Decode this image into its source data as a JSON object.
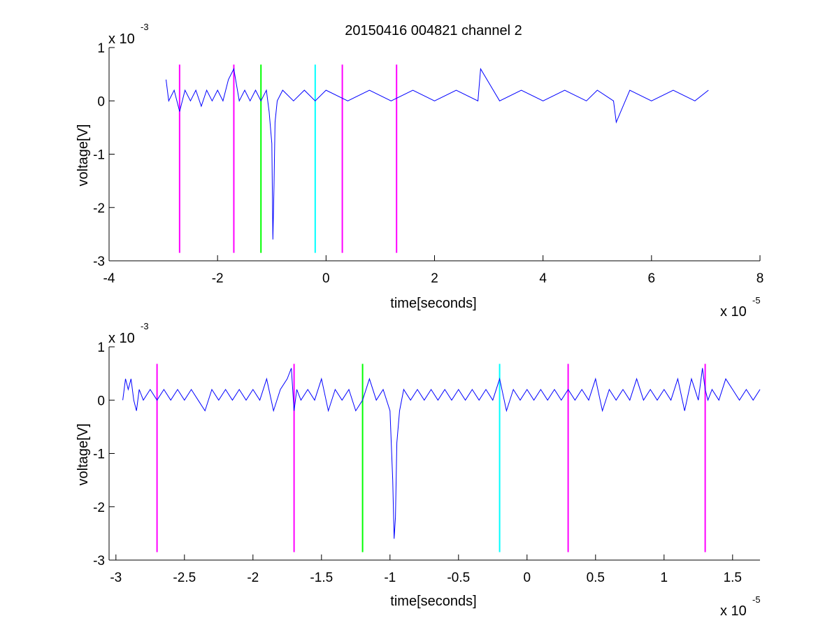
{
  "chart_data": [
    {
      "type": "line",
      "title": "20150416 004821 channel 2",
      "xlabel": "time[seconds]",
      "ylabel": "voltage[V]",
      "x_multiplier_base": "x 10",
      "x_multiplier_exp": "-5",
      "y_multiplier_base": "x 10",
      "y_multiplier_exp": "-3",
      "x_scale": 1e-05,
      "y_scale": 0.001,
      "xlim": [
        -4,
        8
      ],
      "ylim": [
        -3,
        1
      ],
      "x_ticks": [
        -4,
        -2,
        0,
        2,
        4,
        6,
        8
      ],
      "x_tick_labels": [
        "-4",
        "-2",
        "0",
        "2",
        "4",
        "6",
        "8"
      ],
      "y_ticks": [
        1,
        0,
        -1,
        -2,
        -3
      ],
      "y_tick_labels": [
        "1",
        "0",
        "-1",
        "-2",
        "-3"
      ],
      "grid": false,
      "colors": {
        "trace": "#0000ff",
        "trigger": "#ff00ff",
        "start": "#00ff00",
        "stop": "#00ffff"
      },
      "series": [
        {
          "color": "#0000ff",
          "x": [
            -2.95,
            -2.9,
            -2.8,
            -2.7,
            -2.6,
            -2.5,
            -2.4,
            -2.3,
            -2.2,
            -2.1,
            -2.0,
            -1.9,
            -1.8,
            -1.7,
            -1.6,
            -1.5,
            -1.4,
            -1.3,
            -1.2,
            -1.1,
            -1.05,
            -1.0,
            -0.98,
            -0.96,
            -0.94,
            -0.9,
            -0.8,
            -0.6,
            -0.4,
            -0.2,
            0,
            0.4,
            0.8,
            1.2,
            1.6,
            2.0,
            2.4,
            2.8,
            2.85,
            3.2,
            3.6,
            4.0,
            4.4,
            4.8,
            5.0,
            5.3,
            5.35,
            5.6,
            6.0,
            6.4,
            6.8,
            7.05
          ],
          "y": [
            0.4,
            0.0,
            0.2,
            -0.2,
            0.2,
            0.0,
            0.2,
            -0.1,
            0.2,
            0.0,
            0.2,
            0.0,
            0.4,
            0.6,
            0.0,
            0.2,
            0.0,
            0.2,
            0.0,
            0.2,
            -0.2,
            -0.8,
            -2.6,
            -1.6,
            -0.4,
            0.0,
            0.2,
            0.0,
            0.2,
            0.0,
            0.2,
            0.0,
            0.2,
            0.0,
            0.2,
            0.0,
            0.2,
            0.0,
            0.6,
            0.0,
            0.2,
            0.0,
            0.2,
            0.0,
            0.2,
            0.0,
            -0.4,
            0.2,
            0.0,
            0.2,
            0.0,
            0.2
          ]
        }
      ],
      "vlines": [
        {
          "x": -2.7,
          "color": "#ff00ff"
        },
        {
          "x": -1.7,
          "color": "#ff00ff"
        },
        {
          "x": -1.2,
          "color": "#00ff00"
        },
        {
          "x": -0.2,
          "color": "#00ffff"
        },
        {
          "x": 0.3,
          "color": "#ff00ff"
        },
        {
          "x": 1.3,
          "color": "#ff00ff"
        }
      ],
      "vline_range": [
        -2.85,
        0.68
      ]
    },
    {
      "type": "line",
      "title": "",
      "xlabel": "time[seconds]",
      "ylabel": "voltage[V]",
      "x_multiplier_base": "x 10",
      "x_multiplier_exp": "-5",
      "y_multiplier_base": "x 10",
      "y_multiplier_exp": "-3",
      "x_scale": 1e-05,
      "y_scale": 0.001,
      "xlim": [
        -3.05,
        1.7
      ],
      "ylim": [
        -3,
        1
      ],
      "x_ticks": [
        -3,
        -2.5,
        -2,
        -1.5,
        -1,
        -0.5,
        0,
        0.5,
        1,
        1.5
      ],
      "x_tick_labels": [
        "-3",
        "-2.5",
        "-2",
        "-1.5",
        "-1",
        "-0.5",
        "0",
        "0.5",
        "1",
        "1.5"
      ],
      "y_ticks": [
        1,
        0,
        -1,
        -2,
        -3
      ],
      "y_tick_labels": [
        "1",
        "0",
        "-1",
        "-2",
        "-3"
      ],
      "grid": false,
      "series": [
        {
          "color": "#0000ff",
          "x": [
            -2.95,
            -2.93,
            -2.91,
            -2.89,
            -2.87,
            -2.85,
            -2.83,
            -2.8,
            -2.75,
            -2.7,
            -2.65,
            -2.6,
            -2.55,
            -2.5,
            -2.45,
            -2.4,
            -2.35,
            -2.3,
            -2.25,
            -2.2,
            -2.15,
            -2.1,
            -2.05,
            -2.0,
            -1.95,
            -1.9,
            -1.85,
            -1.8,
            -1.75,
            -1.72,
            -1.7,
            -1.68,
            -1.65,
            -1.6,
            -1.55,
            -1.5,
            -1.45,
            -1.4,
            -1.35,
            -1.3,
            -1.25,
            -1.2,
            -1.15,
            -1.1,
            -1.05,
            -1.0,
            -0.98,
            -0.97,
            -0.96,
            -0.95,
            -0.93,
            -0.9,
            -0.85,
            -0.8,
            -0.75,
            -0.7,
            -0.65,
            -0.6,
            -0.55,
            -0.5,
            -0.45,
            -0.4,
            -0.35,
            -0.3,
            -0.25,
            -0.2,
            -0.15,
            -0.1,
            -0.05,
            0.0,
            0.05,
            0.1,
            0.15,
            0.2,
            0.25,
            0.3,
            0.35,
            0.4,
            0.45,
            0.5,
            0.55,
            0.6,
            0.65,
            0.7,
            0.75,
            0.8,
            0.85,
            0.9,
            0.95,
            1.0,
            1.05,
            1.1,
            1.15,
            1.2,
            1.25,
            1.28,
            1.3,
            1.32,
            1.35,
            1.4,
            1.45,
            1.5,
            1.55,
            1.6,
            1.65,
            1.7
          ],
          "y": [
            0.0,
            0.4,
            0.2,
            0.4,
            0.0,
            -0.2,
            0.2,
            0.0,
            0.2,
            0.0,
            0.2,
            0.0,
            0.2,
            0.0,
            0.2,
            0.0,
            -0.2,
            0.2,
            0.0,
            0.2,
            0.0,
            0.2,
            0.0,
            0.2,
            0.0,
            0.4,
            -0.2,
            0.2,
            0.4,
            0.6,
            -0.2,
            0.2,
            0.0,
            0.2,
            0.0,
            0.4,
            -0.2,
            0.2,
            0.0,
            0.2,
            -0.2,
            0.0,
            0.4,
            0.0,
            0.2,
            -0.2,
            -1.5,
            -2.6,
            -2.2,
            -0.8,
            -0.2,
            0.2,
            0.0,
            0.2,
            0.0,
            0.2,
            0.0,
            0.2,
            0.0,
            0.2,
            0.0,
            0.2,
            0.0,
            0.2,
            0.0,
            0.4,
            -0.2,
            0.2,
            0.0,
            0.2,
            0.0,
            0.2,
            0.0,
            0.2,
            0.0,
            0.2,
            0.0,
            0.2,
            0.0,
            0.4,
            -0.2,
            0.2,
            0.0,
            0.2,
            0.0,
            0.4,
            0.0,
            0.2,
            0.0,
            0.2,
            0.0,
            0.4,
            -0.2,
            0.4,
            0.0,
            0.6,
            0.2,
            0.0,
            0.2,
            0.0,
            0.4,
            0.2,
            0.0,
            0.2,
            0.0,
            0.2
          ]
        }
      ],
      "vlines": [
        {
          "x": -2.7,
          "color": "#ff00ff"
        },
        {
          "x": -1.7,
          "color": "#ff00ff"
        },
        {
          "x": -1.2,
          "color": "#00ff00"
        },
        {
          "x": -0.2,
          "color": "#00ffff"
        },
        {
          "x": 0.3,
          "color": "#ff00ff"
        },
        {
          "x": 1.3,
          "color": "#ff00ff"
        }
      ],
      "vline_range": [
        -2.85,
        0.68
      ]
    }
  ]
}
